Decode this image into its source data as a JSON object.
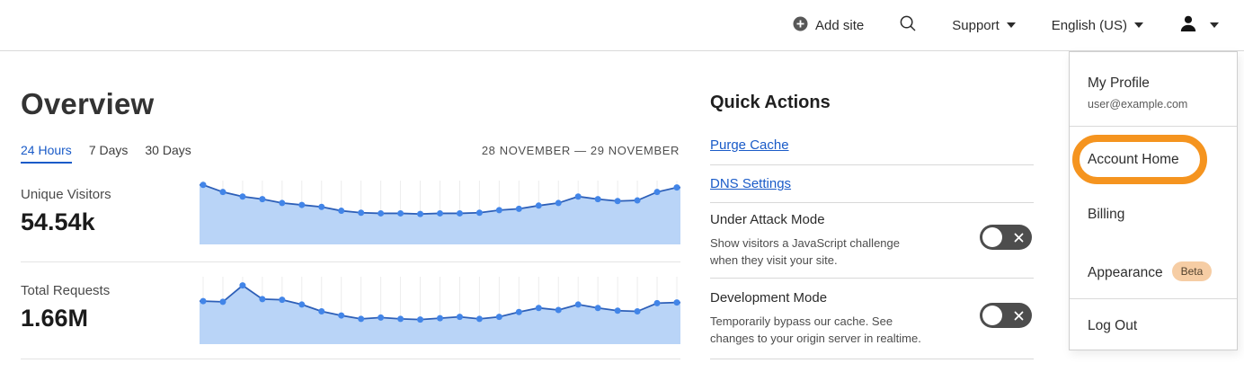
{
  "nav": {
    "add_site_label": "Add site",
    "support_label": "Support",
    "language_label": "English (US)"
  },
  "overview": {
    "title": "Overview",
    "tabs": [
      {
        "label": "24 Hours",
        "active": true
      },
      {
        "label": "7 Days",
        "active": false
      },
      {
        "label": "30 Days",
        "active": false
      }
    ],
    "date_range": "28 NOVEMBER — 29 NOVEMBER",
    "metrics": [
      {
        "label": "Unique Visitors",
        "value": "54.54k"
      },
      {
        "label": "Total Requests",
        "value": "1.66M"
      }
    ]
  },
  "quick_actions": {
    "title": "Quick Actions",
    "links": [
      "Purge Cache",
      "DNS Settings"
    ],
    "toggles": [
      {
        "title": "Under Attack Mode",
        "description": "Show visitors a JavaScript challenge when they visit your site.",
        "state": "off"
      },
      {
        "title": "Development Mode",
        "description": "Temporarily bypass our cache. See changes to your origin server in realtime.",
        "state": "off"
      }
    ]
  },
  "user_menu": {
    "profile_label": "My Profile",
    "email": "user@example.com",
    "items": [
      "Account Home",
      "Billing",
      "Appearance",
      "Log Out"
    ],
    "highlighted_item": "Account Home",
    "beta_badge": "Beta"
  },
  "chart_data": [
    {
      "type": "area",
      "title": "Unique Visitors — 24 Hours",
      "associated_total": "54.54k",
      "x_range": "28 November to 29 November",
      "xlabel": "",
      "ylabel": "",
      "axis_tick_labels": "none shown",
      "grid": "vertical gridlines at each point",
      "legend": "none",
      "note": "y-axis unlabeled; values are relative heights 0-1 of plot area",
      "values_relative": [
        0.92,
        0.81,
        0.74,
        0.7,
        0.64,
        0.61,
        0.58,
        0.52,
        0.49,
        0.48,
        0.48,
        0.47,
        0.48,
        0.48,
        0.49,
        0.53,
        0.55,
        0.6,
        0.64,
        0.74,
        0.7,
        0.67,
        0.68,
        0.81,
        0.88
      ]
    },
    {
      "type": "area",
      "title": "Total Requests — 24 Hours",
      "associated_total": "1.66M",
      "x_range": "28 November to 29 November",
      "xlabel": "",
      "ylabel": "",
      "axis_tick_labels": "none shown",
      "grid": "vertical gridlines at each point",
      "legend": "none",
      "note": "y-axis unlabeled; values are relative heights 0-1 of plot area",
      "values_relative": [
        0.63,
        0.62,
        0.86,
        0.66,
        0.65,
        0.58,
        0.48,
        0.42,
        0.37,
        0.39,
        0.37,
        0.36,
        0.38,
        0.4,
        0.37,
        0.4,
        0.47,
        0.53,
        0.5,
        0.58,
        0.53,
        0.49,
        0.48,
        0.6,
        0.61
      ]
    }
  ],
  "colors": {
    "accent_blue": "#1a5bc8",
    "chart_fill": "#b9d4f7",
    "chart_line": "#2d5fb8",
    "chart_dot": "#4285e8",
    "gridline": "#ececec",
    "annotation_orange": "#f5941f",
    "toggle_off_bg": "#4d4d4d",
    "beta_badge_bg": "#f6cda4"
  }
}
